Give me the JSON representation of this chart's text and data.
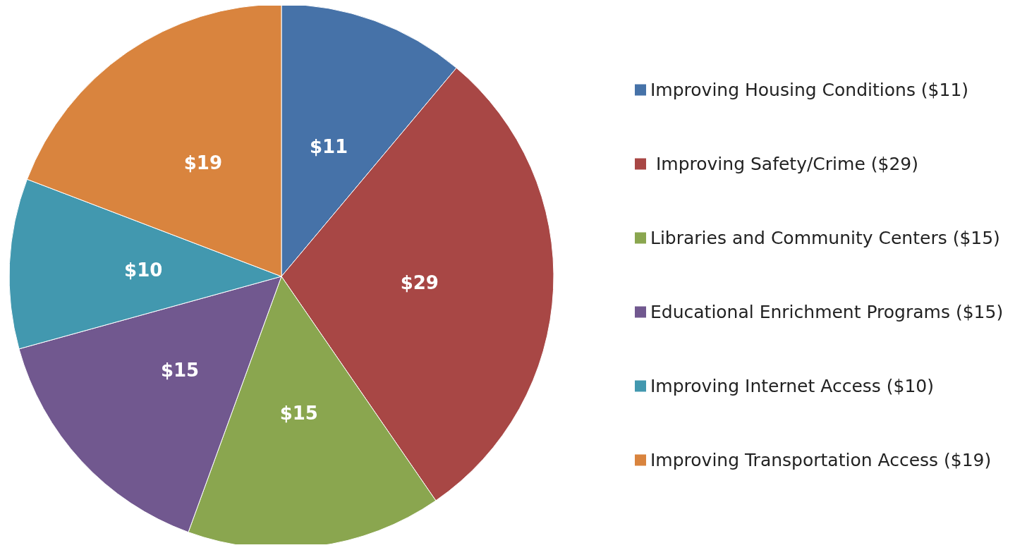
{
  "chart_data": {
    "type": "pie",
    "categories": [
      "Improving Housing Conditions ($11)",
      " Improving Safety/Crime ($29)",
      "Libraries and Community Centers ($15)",
      "Educational Enrichment Programs ($15)",
      "Improving Internet Access ($10)",
      "Improving Transportation Access ($19)"
    ],
    "values": [
      11,
      29,
      15,
      15,
      10,
      19
    ],
    "value_labels": [
      "$11",
      "$29",
      "$15",
      "$15",
      "$10",
      "$19"
    ],
    "colors": [
      "#4672a8",
      "#a84745",
      "#8aa64f",
      "#71588f",
      "#4298af",
      "#d9843e"
    ],
    "legend": "right"
  }
}
